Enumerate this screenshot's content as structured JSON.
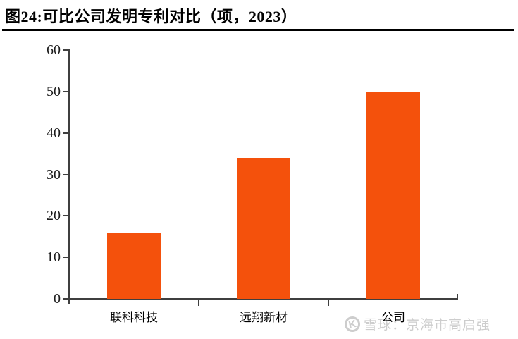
{
  "title": "图24:可比公司发明专利对比（项，2023）",
  "chart_data": {
    "type": "bar",
    "title": "图24:可比公司发明专利对比（项，2023）",
    "categories": [
      "联科科技",
      "远翔新材",
      "公司"
    ],
    "values": [
      16,
      34,
      50
    ],
    "xlabel": "",
    "ylabel": "",
    "ylim": [
      0,
      60
    ],
    "yticks": [
      0,
      10,
      20,
      30,
      40,
      50,
      60
    ],
    "grid": false,
    "legend": "none",
    "bar_color": "#F4510C"
  },
  "watermark": {
    "logo_glyph": "K",
    "text": "雪球：京海市高启强",
    "color": "#cdcdcd"
  },
  "colors": {
    "bar": "#F4510C",
    "axis": "#3f3f3f",
    "tick_label": "#1b1b1b",
    "title": "#000000"
  }
}
